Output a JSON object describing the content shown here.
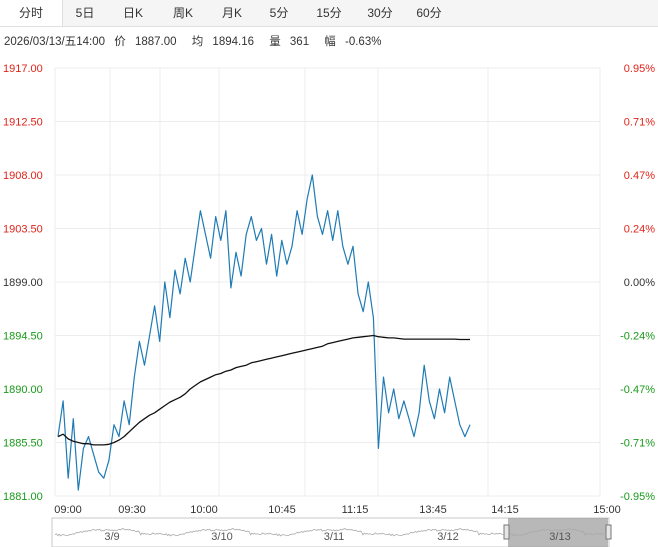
{
  "tabs": [
    {
      "label": "分时",
      "active": true
    },
    {
      "label": "5日",
      "active": false
    },
    {
      "label": "日K",
      "active": false
    },
    {
      "label": "周K",
      "active": false
    },
    {
      "label": "月K",
      "active": false
    },
    {
      "label": "5分",
      "active": false
    },
    {
      "label": "15分",
      "active": false
    },
    {
      "label": "30分",
      "active": false
    },
    {
      "label": "60分",
      "active": false
    }
  ],
  "info": {
    "datetime": "2026/03/13/五14:00",
    "price_label": "价",
    "price": "1887.00",
    "avg_label": "均",
    "avg": "1894.16",
    "vol_label": "量",
    "vol": "361",
    "chg_label": "幅",
    "chg": "-0.63%"
  },
  "colors": {
    "up": "#e0241a",
    "down": "#1a9a1a",
    "neutral": "#333333",
    "price_line": "#1f7bb5",
    "avg_line": "#111111"
  },
  "chart_data": {
    "type": "line",
    "ylim": [
      1881.0,
      1917.0
    ],
    "y_ticks": [
      "1917.00",
      "1912.50",
      "1908.00",
      "1903.50",
      "1899.00",
      "1894.50",
      "1890.00",
      "1885.50",
      "1881.00"
    ],
    "pct_ticks": [
      "0.95%",
      "0.71%",
      "0.47%",
      "0.24%",
      "0.00%",
      "-0.24%",
      "-0.47%",
      "-0.71%",
      "-0.95%"
    ],
    "x_ticks": [
      "09:00",
      "09:30",
      "10:00",
      "10:45",
      "11:15",
      "13:45",
      "14:15",
      "15:00"
    ],
    "price": [
      1886.0,
      1889.0,
      1882.5,
      1887.5,
      1881.5,
      1885.0,
      1886.0,
      1884.5,
      1883.0,
      1882.5,
      1884.0,
      1887.0,
      1886.0,
      1889.0,
      1887.0,
      1891.0,
      1894.0,
      1892.0,
      1894.5,
      1897.0,
      1894.0,
      1899.0,
      1896.0,
      1900.0,
      1898.0,
      1901.0,
      1899.0,
      1902.0,
      1905.0,
      1903.0,
      1901.0,
      1904.5,
      1902.5,
      1905.0,
      1898.5,
      1901.5,
      1899.5,
      1903.0,
      1904.5,
      1902.5,
      1903.5,
      1900.5,
      1903.0,
      1899.5,
      1902.5,
      1900.5,
      1902.0,
      1905.0,
      1903.0,
      1906.0,
      1908.0,
      1904.5,
      1903.0,
      1905.0,
      1902.5,
      1905.0,
      1902.0,
      1900.5,
      1902.0,
      1898.0,
      1896.5,
      1899.0,
      1896.0,
      1885.0,
      1891.0,
      1888.0,
      1890.0,
      1887.5,
      1889.0,
      1887.5,
      1886.0,
      1888.0,
      1892.0,
      1889.0,
      1887.5,
      1890.0,
      1888.0,
      1891.0,
      1889.0,
      1887.0,
      1886.0,
      1887.0
    ],
    "avg": [
      1886.0,
      1886.2,
      1885.8,
      1885.6,
      1885.5,
      1885.4,
      1885.4,
      1885.3,
      1885.3,
      1885.3,
      1885.35,
      1885.5,
      1885.7,
      1886.0,
      1886.4,
      1886.8,
      1887.2,
      1887.5,
      1887.8,
      1888.0,
      1888.3,
      1888.6,
      1888.9,
      1889.1,
      1889.3,
      1889.6,
      1890.0,
      1890.3,
      1890.6,
      1890.8,
      1891.0,
      1891.2,
      1891.3,
      1891.5,
      1891.6,
      1891.8,
      1891.9,
      1892.0,
      1892.2,
      1892.3,
      1892.4,
      1892.5,
      1892.6,
      1892.7,
      1892.8,
      1892.9,
      1893.0,
      1893.1,
      1893.2,
      1893.3,
      1893.4,
      1893.5,
      1893.6,
      1893.8,
      1893.9,
      1894.0,
      1894.1,
      1894.2,
      1894.3,
      1894.35,
      1894.4,
      1894.45,
      1894.5,
      1894.4,
      1894.35,
      1894.3,
      1894.3,
      1894.25,
      1894.2,
      1894.2,
      1894.2,
      1894.2,
      1894.2,
      1894.2,
      1894.2,
      1894.2,
      1894.2,
      1894.2,
      1894.2,
      1894.16,
      1894.16,
      1894.16
    ]
  },
  "navigator": {
    "dates": [
      "3/9",
      "3/10",
      "3/11",
      "3/12",
      "3/13"
    ]
  }
}
